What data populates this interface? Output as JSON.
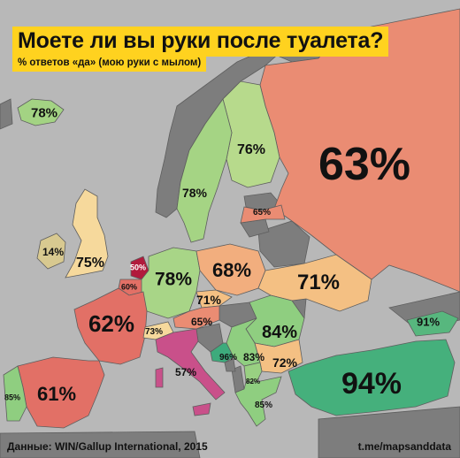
{
  "title": "Моете ли вы руки после туалета?",
  "subtitle": "% ответов «да» (мою руки с мылом)",
  "footer": {
    "source": "Данные: WIN/Gallup International, 2015",
    "credit": "t.me/mapsanddata"
  },
  "colors": {
    "background": "#b8b8b8",
    "no_data": "#7d7d7d",
    "title_bg": "#ffd21f"
  },
  "countries": [
    {
      "name": "Iceland",
      "label": "78%",
      "value": 78,
      "color": "#a3d383"
    },
    {
      "name": "Finland",
      "label": "76%",
      "value": 76,
      "color": "#b7da8c"
    },
    {
      "name": "Russia",
      "label": "63%",
      "value": 63,
      "color": "#ea8c73"
    },
    {
      "name": "Sweden",
      "label": "78%",
      "value": 78,
      "color": "#a5d484"
    },
    {
      "name": "Latvia",
      "label": "65%",
      "value": 65,
      "color": "#ea8c73"
    },
    {
      "name": "Ireland",
      "label": "14%",
      "value": 14,
      "color": "#d8c990"
    },
    {
      "name": "United Kingdom",
      "label": "75%",
      "value": 75,
      "color": "#f6d99c"
    },
    {
      "name": "Netherlands",
      "label": "50%",
      "value": 50,
      "color": "#b11a3c"
    },
    {
      "name": "Belgium",
      "label": "60%",
      "value": 60,
      "color": "#e27066"
    },
    {
      "name": "Germany",
      "label": "78%",
      "value": 78,
      "color": "#a8d587"
    },
    {
      "name": "Poland",
      "label": "68%",
      "value": 68,
      "color": "#f2ae7e"
    },
    {
      "name": "Ukraine",
      "label": "71%",
      "value": 71,
      "color": "#f4c083"
    },
    {
      "name": "Czechia",
      "label": "71%",
      "value": 71,
      "color": "#f4c083"
    },
    {
      "name": "Austria",
      "label": "65%",
      "value": 65,
      "color": "#ea8c73"
    },
    {
      "name": "France",
      "label": "62%",
      "value": 62,
      "color": "#e27066"
    },
    {
      "name": "Switzerland",
      "label": "73%",
      "value": 73,
      "color": "#f6d99c"
    },
    {
      "name": "Italy",
      "label": "57%",
      "value": 57,
      "color": "#c9508a"
    },
    {
      "name": "Romania",
      "label": "84%",
      "value": 84,
      "color": "#8fce80"
    },
    {
      "name": "Serbia",
      "label": "83%",
      "value": 83,
      "color": "#8fce80"
    },
    {
      "name": "Bosnia and Herzegovina",
      "label": "96%",
      "value": 96,
      "color": "#3dab7c"
    },
    {
      "name": "Bulgaria",
      "label": "72%",
      "value": 72,
      "color": "#f4c083"
    },
    {
      "name": "North Macedonia",
      "label": "82%",
      "value": 82,
      "color": "#99d082"
    },
    {
      "name": "Greece",
      "label": "85%",
      "value": 85,
      "color": "#8fce80"
    },
    {
      "name": "Turkey",
      "label": "94%",
      "value": 94,
      "color": "#45b07c"
    },
    {
      "name": "Georgia",
      "label": "91%",
      "value": 91,
      "color": "#57b77e"
    },
    {
      "name": "Spain",
      "label": "61%",
      "value": 61,
      "color": "#e27066"
    },
    {
      "name": "Portugal",
      "label": "85%",
      "value": 85,
      "color": "#8fce80"
    }
  ]
}
